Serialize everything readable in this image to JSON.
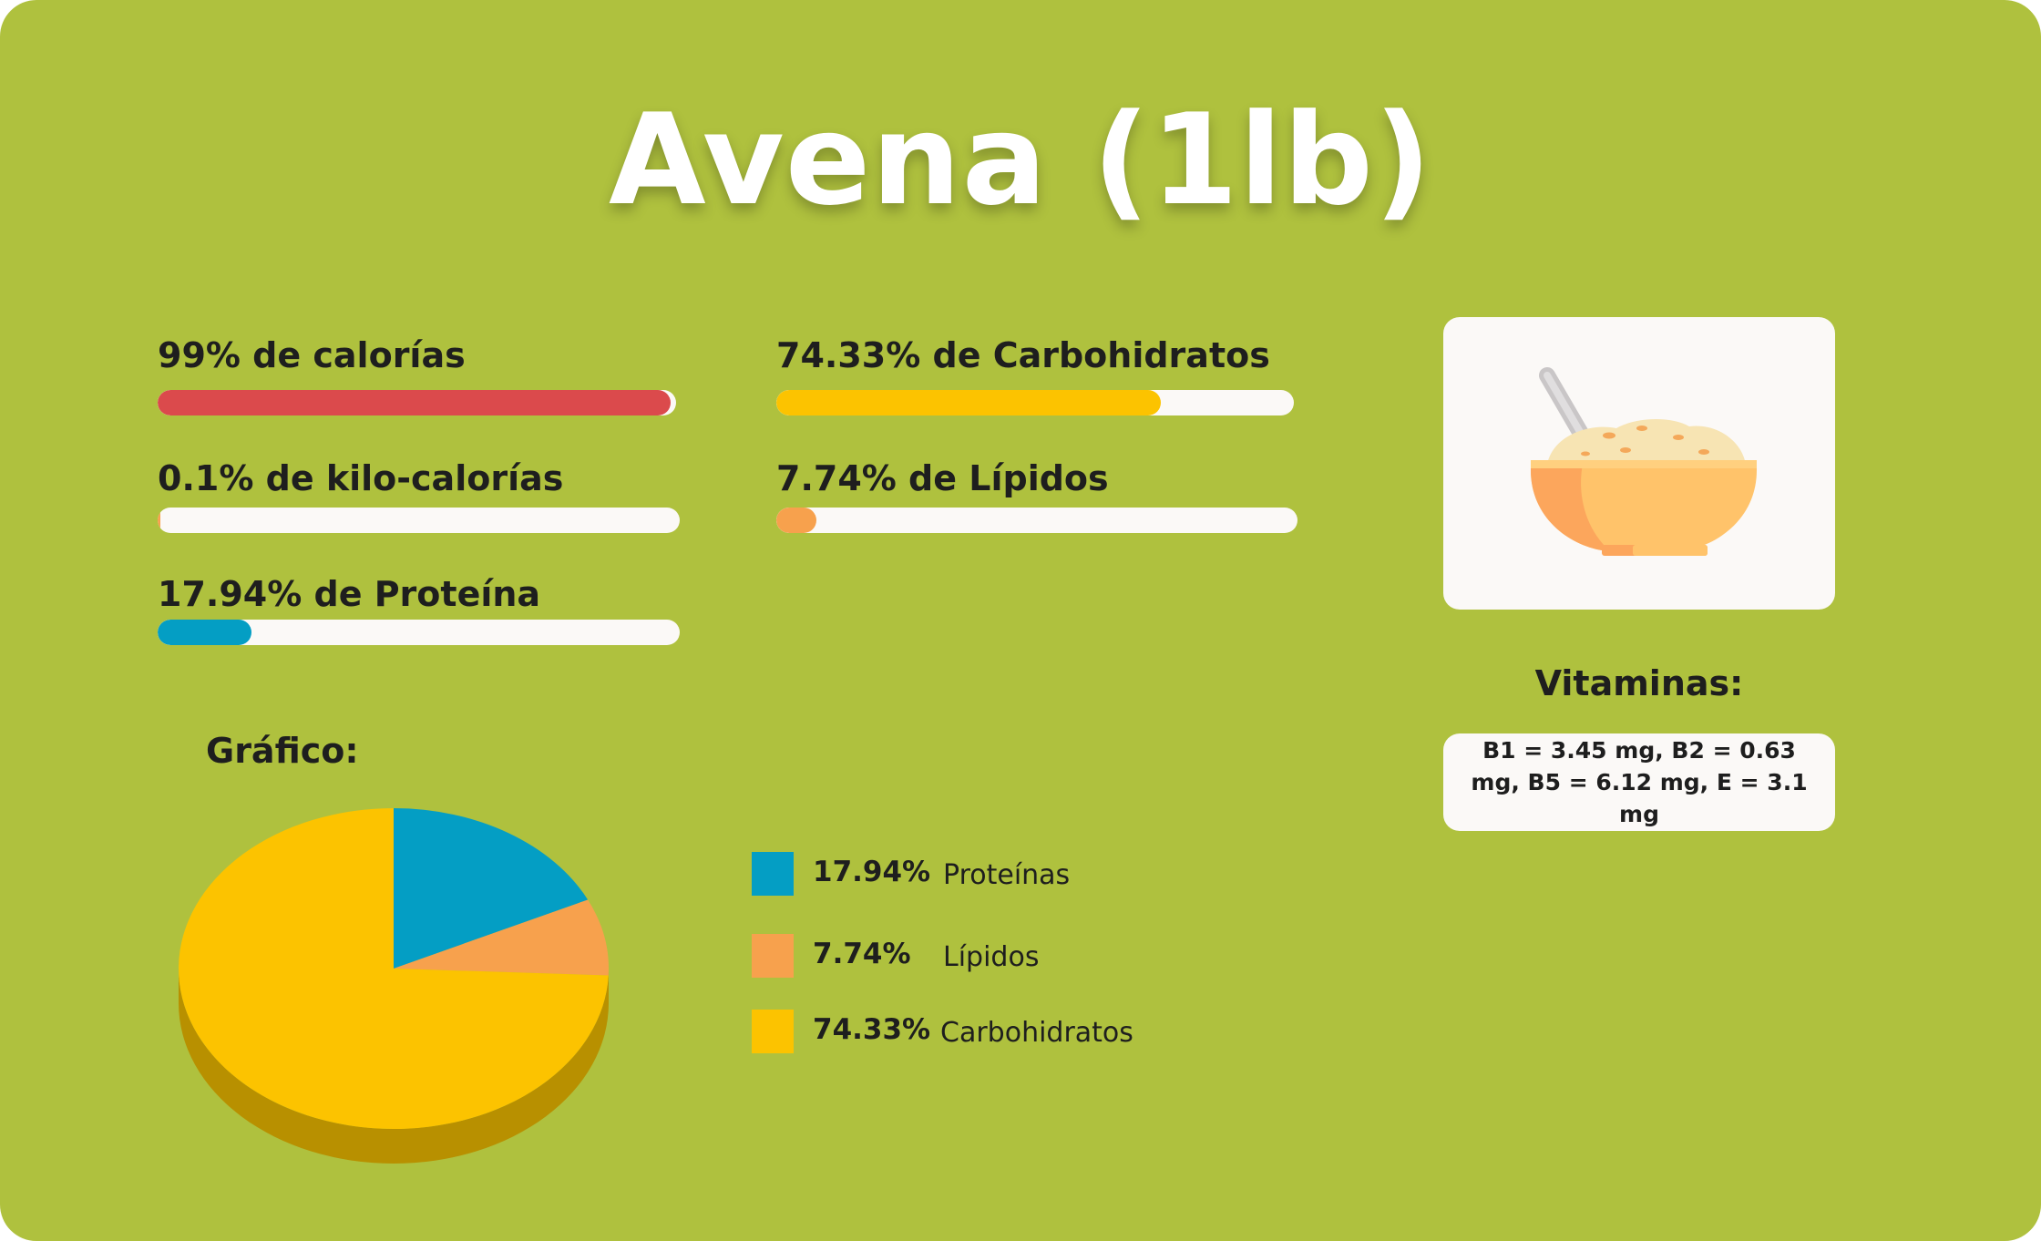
{
  "title": "Avena (1lb)",
  "stats": [
    {
      "label": "99% de calorías",
      "value": 99,
      "color": "#db4a4c"
    },
    {
      "label": "0.1% de kilo-calorías",
      "value": 0.1,
      "color": "#f7a14d"
    },
    {
      "label": "17.94% de Proteína",
      "value": 17.94,
      "color": "#049ec4"
    },
    {
      "label": "74.33% de Carbohidratos",
      "value": 74.33,
      "color": "#fcc300"
    },
    {
      "label": "7.74% de Lípidos",
      "value": 7.74,
      "color": "#f7a14d"
    }
  ],
  "chart_heading": "Gráfico:",
  "vitamins": {
    "heading": "Vitaminas:",
    "text": "B1 = 3.45 mg, B2 = 0.63 mg, B5 = 6.12 mg, E = 3.1 mg"
  },
  "image_icon": "oatmeal-bowl-icon",
  "chart_data": {
    "type": "pie",
    "labels": [
      "Proteínas",
      "Lípidos",
      "Carbohidratos"
    ],
    "value_labels": [
      "17.94%",
      "7.74%",
      "74.33%"
    ],
    "values": [
      17.94,
      7.74,
      74.33
    ],
    "colors": [
      "#049ec4",
      "#f7a14d",
      "#fcc300"
    ],
    "side_colors": [
      "#02718c",
      "#b8743a",
      "#b89000"
    ],
    "legend": "right"
  }
}
